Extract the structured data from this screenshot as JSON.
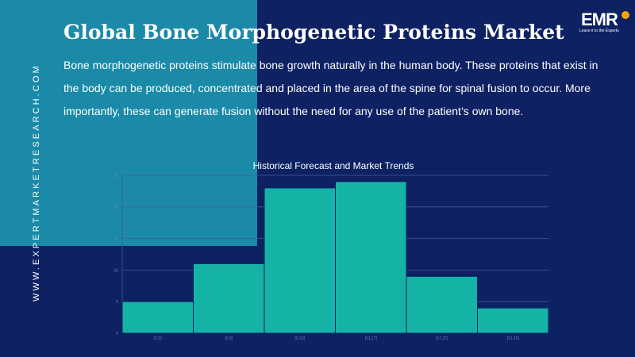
{
  "header": {
    "title": "Global Bone Morphogenetic Proteins Market",
    "description": "Bone morphogenetic proteins stimulate bone growth naturally in the human body. These proteins that exist in the body can be produced, concentrated and placed in the area of the spine for spinal fusion to occur.  More importantly, these can generate fusion without the need for any use of the patient’s own bone."
  },
  "sidebar": {
    "url": "WWW.EXPERTMARKETRESEARCH.COM"
  },
  "logo": {
    "text": "EMR",
    "tagline": "Leave it to the Experts"
  },
  "colors": {
    "background": "#0d2163",
    "accent_panel": "#1a8aa8",
    "bar": "#15b3a6",
    "logo_dot": "#f2a20c"
  },
  "chart_data": {
    "type": "bar",
    "title": "Historical Forecast and Market Trends",
    "xlabel": "",
    "ylabel": "",
    "categories": [
      "[1,5]",
      "[5,9]",
      "[9,13]",
      "[13,17]",
      "[17,21]",
      "[21,25]"
    ],
    "values": [
      5,
      11,
      23,
      24,
      9,
      4
    ],
    "yticks": [
      0,
      5,
      10,
      15,
      20,
      25
    ],
    "ylim": [
      0,
      25
    ],
    "grid": true,
    "legend": "none"
  }
}
